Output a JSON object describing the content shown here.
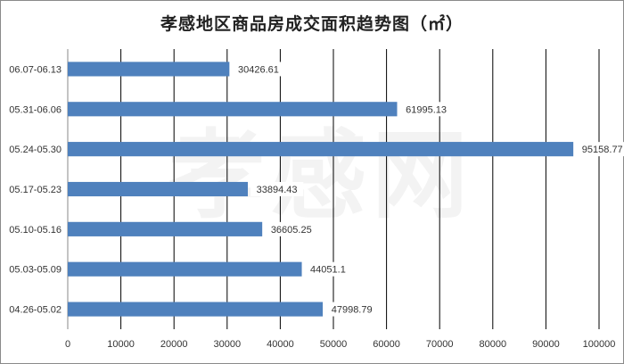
{
  "title": "孝感地区商品房成交面积趋势图（㎡）",
  "watermark": "孝感网",
  "chart_data": {
    "type": "bar",
    "orientation": "horizontal",
    "title": "孝感地区商品房成交面积趋势图（㎡）",
    "categories": [
      "06.07-06.13",
      "05.31-06.06",
      "05.24-05.30",
      "05.17-05.23",
      "05.10-05.16",
      "05.03-05.09",
      "04.26-05.02"
    ],
    "values": [
      30426.61,
      61995.13,
      95158.77,
      33894.43,
      36605.25,
      44051.1,
      47998.79
    ],
    "value_labels": [
      "30426.61",
      "61995.13",
      "95158.77",
      "33894.43",
      "36605.25",
      "44051.1",
      "47998.79"
    ],
    "xlim": [
      0,
      100000
    ],
    "xticks": [
      "0",
      "10000",
      "20000",
      "30000",
      "40000",
      "50000",
      "60000",
      "70000",
      "80000",
      "90000",
      "100000"
    ],
    "grid": true,
    "bar_color": "#4f81bd",
    "grid_color": "#000000"
  }
}
